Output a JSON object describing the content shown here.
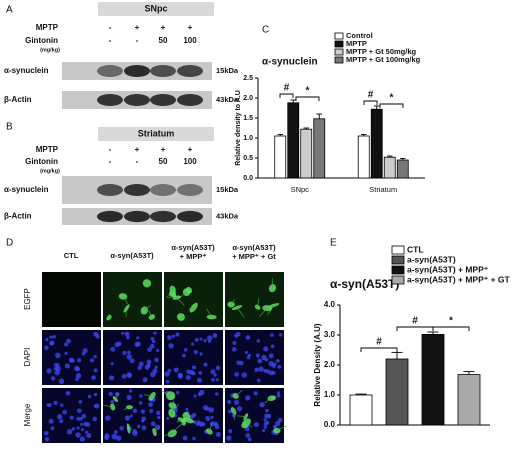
{
  "panel_labels": [
    "A",
    "B",
    "C",
    "D",
    "E"
  ],
  "blots": [
    {
      "region": "SNpc",
      "rows": [
        {
          "label": "MPTP",
          "values": [
            "-",
            "+",
            "+",
            "+"
          ]
        },
        {
          "label": "Gintonin",
          "unit": "(mg/kg)",
          "values": [
            "-",
            "-",
            "50",
            "100"
          ]
        }
      ],
      "bands": [
        {
          "label": "α-synuclein",
          "size": "15kDa"
        },
        {
          "label": "β-Actin",
          "size": "43kDa"
        }
      ]
    },
    {
      "region": "Striatum",
      "rows": [
        {
          "label": "MPTP",
          "values": [
            "-",
            "+",
            "+",
            "+"
          ]
        },
        {
          "label": "Gintonin",
          "unit": "(mg/kg)",
          "values": [
            "-",
            "-",
            "50",
            "100"
          ]
        }
      ],
      "bands": [
        {
          "label": "α-synuclein",
          "size": "15kDa"
        },
        {
          "label": "β-Actin",
          "size": "43kDa"
        }
      ]
    }
  ],
  "chart_data": [
    {
      "type": "bar",
      "title": "α-synuclein",
      "y_label": "Relative density to A.U",
      "categories": [
        "SNpc",
        "Striatum"
      ],
      "series": [
        {
          "name": "Control",
          "color": "#ffffff",
          "values": [
            1.05,
            1.05
          ],
          "errors": [
            0.04,
            0.04
          ]
        },
        {
          "name": "MPTP",
          "color": "#111111",
          "values": [
            1.88,
            1.72
          ],
          "errors": [
            0.07,
            0.08
          ]
        },
        {
          "name": "MPTP + Gt 50mg/kg",
          "color": "#cccccc",
          "values": [
            1.22,
            0.52
          ],
          "errors": [
            0.03,
            0.03
          ]
        },
        {
          "name": "MPTP + Gt 100mg/kg",
          "color": "#777777",
          "values": [
            1.48,
            0.45
          ],
          "errors": [
            0.12,
            0.04
          ]
        }
      ],
      "ylim": [
        0,
        2.5
      ],
      "yticks": [
        {
          "value": 0,
          "label": "0.0"
        },
        0.5,
        {
          "value": 1,
          "label": "1.0"
        },
        1.5,
        {
          "value": 2,
          "label": "2.0"
        },
        2.5
      ],
      "annotations": [
        "#",
        "*",
        "#",
        "*"
      ]
    },
    {
      "type": "bar",
      "title": "α-syn(A53T)",
      "y_label": "Relative Density (A.U)",
      "categories": [
        null
      ],
      "series": [
        {
          "name": "CTL",
          "color": "#ffffff",
          "values": [
            1.0
          ],
          "errors": [
            0.03
          ]
        },
        {
          "name": "a-syn(A53T)",
          "color": "#555555",
          "values": [
            2.2
          ],
          "errors": [
            0.22
          ]
        },
        {
          "name": "a-syn(A53T) + MPP⁺",
          "color": "#111111",
          "values": [
            3.02
          ],
          "errors": [
            0.08
          ]
        },
        {
          "name": "a-syn(A53T) + MPP⁺ + GT",
          "color": "#aaaaaa",
          "values": [
            1.68
          ],
          "errors": [
            0.1
          ]
        }
      ],
      "ylim": [
        0,
        4
      ],
      "yticks": [
        {
          "value": 0,
          "label": "0.0"
        },
        {
          "value": 1,
          "label": "1.0"
        },
        {
          "value": 2,
          "label": "2.0"
        },
        {
          "value": 3,
          "label": "3.0"
        },
        {
          "value": 4,
          "label": "4.0"
        }
      ],
      "annotations": [
        "#",
        "#",
        "*"
      ]
    }
  ],
  "micrographs": {
    "columns": [
      [
        "CTL"
      ],
      [
        "α-syn(A53T)"
      ],
      [
        "α-syn(A53T)",
        "+ MPP⁺"
      ],
      [
        "α-syn(A53T)",
        "+ MPP⁺ + Gt"
      ]
    ],
    "rows": [
      "EGFP",
      "DAPI",
      "Merge"
    ]
  }
}
